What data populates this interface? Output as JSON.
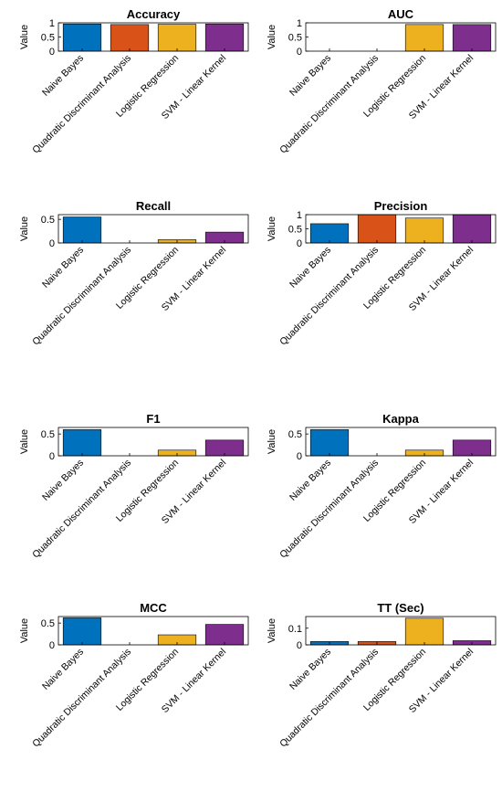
{
  "chart_data": [
    {
      "type": "bar",
      "title": "Accuracy",
      "ylabel": "Value",
      "categories": [
        "Naive Bayes",
        "Quadratic Discriminant Analysis",
        "Logistic Regression",
        "SVM - Linear Kernel"
      ],
      "values": [
        0.96,
        0.94,
        0.95,
        0.96
      ],
      "ylim": [
        0,
        1
      ],
      "yticks": [
        "0",
        "0.5",
        "1"
      ]
    },
    {
      "type": "bar",
      "title": "AUC",
      "ylabel": "Value",
      "categories": [
        "Naive Bayes",
        "Quadratic Discriminant Analysis",
        "Logistic Regression",
        "SVM - Linear Kernel"
      ],
      "values": [
        0,
        0,
        0.94,
        0.94
      ],
      "ylim": [
        0,
        1
      ],
      "yticks": [
        "0",
        "0.5",
        "1"
      ]
    },
    {
      "type": "bar",
      "title": "Recall",
      "ylabel": "Value",
      "categories": [
        "Naive Bayes",
        "Quadratic Discriminant Analysis",
        "Logistic Regression",
        "SVM - Linear Kernel"
      ],
      "values": [
        0.55,
        0,
        0.07,
        0.23
      ],
      "ylim": [
        0,
        0.6
      ],
      "yticks": [
        "0",
        "0.5"
      ]
    },
    {
      "type": "bar",
      "title": "Precision",
      "ylabel": "Value",
      "categories": [
        "Naive Bayes",
        "Quadratic Discriminant Analysis",
        "Logistic Regression",
        "SVM - Linear Kernel"
      ],
      "values": [
        0.68,
        1.0,
        0.88,
        1.0
      ],
      "ylim": [
        0,
        1
      ],
      "yticks": [
        "0",
        "0.5",
        "1"
      ]
    },
    {
      "type": "bar",
      "title": "F1",
      "ylabel": "Value",
      "categories": [
        "Naive Bayes",
        "Quadratic Discriminant Analysis",
        "Logistic Regression",
        "SVM - Linear Kernel"
      ],
      "values": [
        0.6,
        0,
        0.13,
        0.36
      ],
      "ylim": [
        0,
        0.65
      ],
      "yticks": [
        "0",
        "0.5"
      ]
    },
    {
      "type": "bar",
      "title": "Kappa",
      "ylabel": "Value",
      "categories": [
        "Naive Bayes",
        "Quadratic Discriminant Analysis",
        "Logistic Regression",
        "SVM - Linear Kernel"
      ],
      "values": [
        0.6,
        0,
        0.13,
        0.36
      ],
      "ylim": [
        0,
        0.65
      ],
      "yticks": [
        "0",
        "0.5"
      ]
    },
    {
      "type": "bar",
      "title": "MCC",
      "ylabel": "Value",
      "categories": [
        "Naive Bayes",
        "Quadratic Discriminant Analysis",
        "Logistic Regression",
        "SVM - Linear Kernel"
      ],
      "values": [
        0.62,
        0,
        0.23,
        0.47
      ],
      "ylim": [
        0,
        0.65
      ],
      "yticks": [
        "0",
        "0.5"
      ]
    },
    {
      "type": "bar",
      "title": "TT (Sec)",
      "ylabel": "Value",
      "categories": [
        "Naive Bayes",
        "Quadratic Discriminant Analysis",
        "Logistic Regression",
        "SVM - Linear Kernel"
      ],
      "values": [
        0.02,
        0.02,
        0.16,
        0.025
      ],
      "ylim": [
        0,
        0.17
      ],
      "yticks": [
        "0",
        "0.1"
      ]
    }
  ],
  "colors": [
    "#0072BD",
    "#D95319",
    "#EDB120",
    "#7E2F8E"
  ]
}
